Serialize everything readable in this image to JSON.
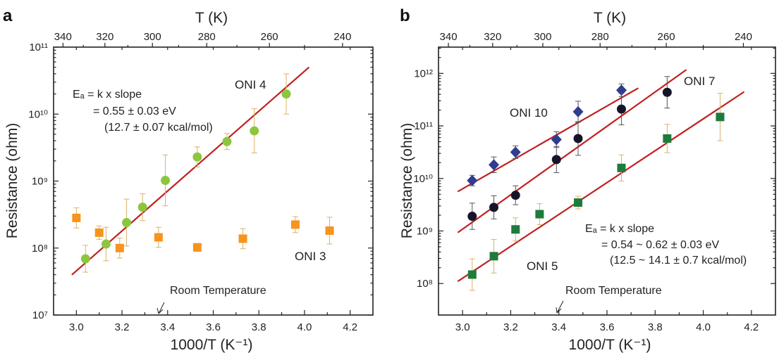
{
  "chart_data": [
    {
      "panel": "a",
      "type": "scatter",
      "xlabel": "1000/T (K⁻¹)",
      "ylabel": "Resistance (ohm)",
      "top_xlabel": "T (K)",
      "xlim": [
        2.9,
        4.3
      ],
      "ylim_log10": [
        7,
        11
      ],
      "log_y": true,
      "x_ticks": [
        "3.0",
        "3.2",
        "3.4",
        "3.6",
        "3.8",
        "4.0",
        "4.2"
      ],
      "y_ticks": [
        "10⁷",
        "10⁸",
        "10⁹",
        "10¹⁰",
        "10¹¹"
      ],
      "top_ticks": [
        340,
        320,
        300,
        280,
        260,
        240
      ],
      "series": [
        {
          "name": "ONI 4",
          "color": "#8cc63f",
          "marker": "circle",
          "x": [
            3.04,
            3.13,
            3.22,
            3.29,
            3.39,
            3.53,
            3.66,
            3.78,
            3.92
          ],
          "y_log10": [
            7.84,
            8.06,
            8.38,
            8.61,
            9.01,
            9.36,
            9.59,
            9.75,
            10.3
          ],
          "err_log10": [
            0.2,
            0.25,
            0.35,
            0.2,
            0.38,
            0.15,
            0.12,
            0.33,
            0.3
          ]
        },
        {
          "name": "ONI 3",
          "color": "#f7941d",
          "marker": "square",
          "x": [
            3.0,
            3.1,
            3.19,
            3.36,
            3.53,
            3.73,
            3.96,
            4.11
          ],
          "y_log10": [
            8.45,
            8.23,
            8.0,
            8.16,
            8.01,
            8.14,
            8.35,
            8.26
          ],
          "err_log10": [
            0.15,
            0.1,
            0.15,
            0.15,
            0.06,
            0.15,
            0.12,
            0.2
          ]
        }
      ],
      "fits": [
        {
          "series": "ONI 4",
          "x": [
            2.98,
            4.02
          ],
          "y_log10": [
            7.6,
            10.7
          ]
        }
      ],
      "annotations": {
        "ea_line1": "Eₐ = k x slope",
        "ea_line2": "= 0.55 ± 0.03 eV",
        "ea_line3": "(12.7 ± 0.07 kcal/mol)",
        "room_temp": "Room Temperature"
      }
    },
    {
      "panel": "b",
      "type": "scatter",
      "xlabel": "1000/T (K⁻¹)",
      "ylabel": "Resistance (ohm)",
      "top_xlabel": "T (K)",
      "xlim": [
        2.9,
        4.3
      ],
      "ylim_log10": [
        7.4,
        12.5
      ],
      "log_y": true,
      "x_ticks": [
        "3.0",
        "3.2",
        "3.4",
        "3.6",
        "3.8",
        "4.0",
        "4.2"
      ],
      "y_ticks": [
        "10⁸",
        "10⁹",
        "10¹⁰",
        "10¹¹",
        "10¹²"
      ],
      "top_ticks": [
        340,
        320,
        300,
        280,
        260,
        240
      ],
      "series": [
        {
          "name": "ONI 10",
          "color": "#2e3d8f",
          "marker": "diamond",
          "x": [
            3.04,
            3.13,
            3.22,
            3.39,
            3.48,
            3.66
          ],
          "y_log10": [
            9.96,
            10.26,
            10.5,
            10.74,
            11.27,
            11.68
          ],
          "err_log10": [
            0.1,
            0.15,
            0.12,
            0.15,
            0.2,
            0.12
          ]
        },
        {
          "name": "ONI 7",
          "color": "#15152a",
          "marker": "circle",
          "x": [
            3.04,
            3.13,
            3.22,
            3.39,
            3.48,
            3.66,
            3.85
          ],
          "y_log10": [
            9.28,
            9.45,
            9.68,
            10.36,
            10.76,
            11.32,
            11.64
          ],
          "err_log10": [
            0.25,
            0.22,
            0.18,
            0.25,
            0.32,
            0.3,
            0.3
          ]
        },
        {
          "name": "ONI 5",
          "color": "#1e7b3b",
          "marker": "square",
          "x": [
            3.04,
            3.13,
            3.22,
            3.32,
            3.48,
            3.66,
            3.85,
            4.07
          ],
          "y_log10": [
            8.17,
            8.52,
            9.03,
            9.32,
            9.54,
            10.2,
            10.76,
            11.17
          ],
          "err_log10": [
            0.3,
            0.32,
            0.22,
            0.2,
            0.12,
            0.25,
            0.27,
            0.45
          ]
        }
      ],
      "fits": [
        {
          "series": "ONI 10",
          "x": [
            2.98,
            3.73
          ],
          "y_log10": [
            9.75,
            11.72
          ]
        },
        {
          "series": "ONI 7",
          "x": [
            2.98,
            3.93
          ],
          "y_log10": [
            8.97,
            12.07
          ]
        },
        {
          "series": "ONI 5",
          "x": [
            2.98,
            4.17
          ],
          "y_log10": [
            8.04,
            11.65
          ]
        }
      ],
      "annotations": {
        "ea_line1": "Eₐ = k x slope",
        "ea_line2": "= 0.54 ~ 0.62 ± 0.03 eV",
        "ea_line3": "(12.5 ~ 14.1 ± 0.7 kcal/mol)",
        "room_temp": "Room Temperature"
      }
    }
  ]
}
